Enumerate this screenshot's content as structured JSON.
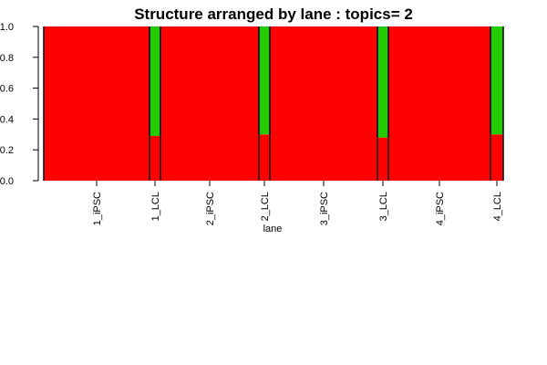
{
  "chart_data": {
    "type": "bar",
    "title": "Structure arranged by lane : topics= 2",
    "xlabel": "lane",
    "ylabel": "",
    "ylim": [
      0,
      1
    ],
    "yticks": [
      "0.0",
      "0.2",
      "0.4",
      "0.6",
      "0.8",
      "1.0"
    ],
    "categories": [
      "1_iPSC",
      "1_LCL",
      "2_iPSC",
      "2_LCL",
      "3_iPSC",
      "3_LCL",
      "4_iPSC",
      "4_LCL"
    ],
    "series": [
      {
        "color": "#ff0000",
        "values": [
          1.0,
          0.29,
          1.0,
          0.3,
          1.0,
          0.28,
          1.0,
          0.3
        ]
      },
      {
        "color": "#22cc00",
        "values": [
          0.0,
          0.71,
          0.0,
          0.7,
          0.0,
          0.72,
          0.0,
          0.7
        ]
      }
    ],
    "grid": false,
    "legend": "none"
  }
}
